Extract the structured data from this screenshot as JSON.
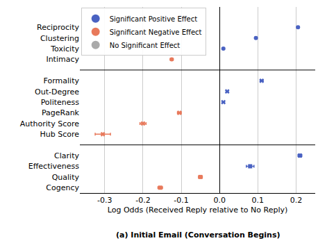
{
  "chart_data": {
    "type": "dot",
    "orientation": "horizontal",
    "title": "(a) Initial Email (Conversation Begins)",
    "x_label": "Log Odds (Received Reply relative to No Reply)",
    "groups": [
      {
        "marker": "circle",
        "categories": [
          "Reciprocity",
          "Clustering",
          "Toxicity",
          "Intimacy"
        ]
      },
      {
        "marker": "x",
        "categories": [
          "Formality",
          "Out-Degree",
          "Politeness",
          "PageRank",
          "Authority Score",
          "Hub Score"
        ]
      },
      {
        "marker": "square",
        "categories": [
          "Clarity",
          "Effectiveness",
          "Quality",
          "Cogency"
        ]
      }
    ],
    "series": [
      {
        "name": "Significant Positive Effect",
        "color": "#4a62c2",
        "values": [
          0.205,
          0.095,
          0.01,
          null,
          0.11,
          0.02,
          0.01,
          null,
          null,
          null,
          0.21,
          0.08,
          null,
          null
        ],
        "errors": [
          0.003,
          0.003,
          0.003,
          null,
          0.004,
          0.003,
          0.003,
          null,
          null,
          null,
          0.005,
          0.01,
          null,
          null
        ]
      },
      {
        "name": "Significant Negative Effect",
        "color": "#e8795b",
        "values": [
          null,
          null,
          null,
          -0.125,
          null,
          null,
          null,
          -0.105,
          -0.2,
          -0.305,
          null,
          null,
          -0.05,
          -0.155
        ],
        "errors": [
          null,
          null,
          null,
          0.004,
          null,
          null,
          null,
          0.005,
          0.008,
          0.02,
          null,
          null,
          0.005,
          0.006
        ]
      },
      {
        "name": "No Significant Effect",
        "color": "#aaaaaa",
        "values": [
          null,
          null,
          null,
          null,
          null,
          null,
          null,
          null,
          null,
          null,
          null,
          null,
          null,
          null
        ],
        "errors": [
          null,
          null,
          null,
          null,
          null,
          null,
          null,
          null,
          null,
          null,
          null,
          null,
          null,
          null
        ]
      }
    ],
    "xlim": [
      -0.365,
      0.25
    ],
    "xticks": [
      -0.3,
      -0.2,
      -0.1,
      {
        "value": 0,
        "label": "0.0"
      },
      0.1,
      0.2
    ],
    "grid": true,
    "legend": "upper left"
  }
}
